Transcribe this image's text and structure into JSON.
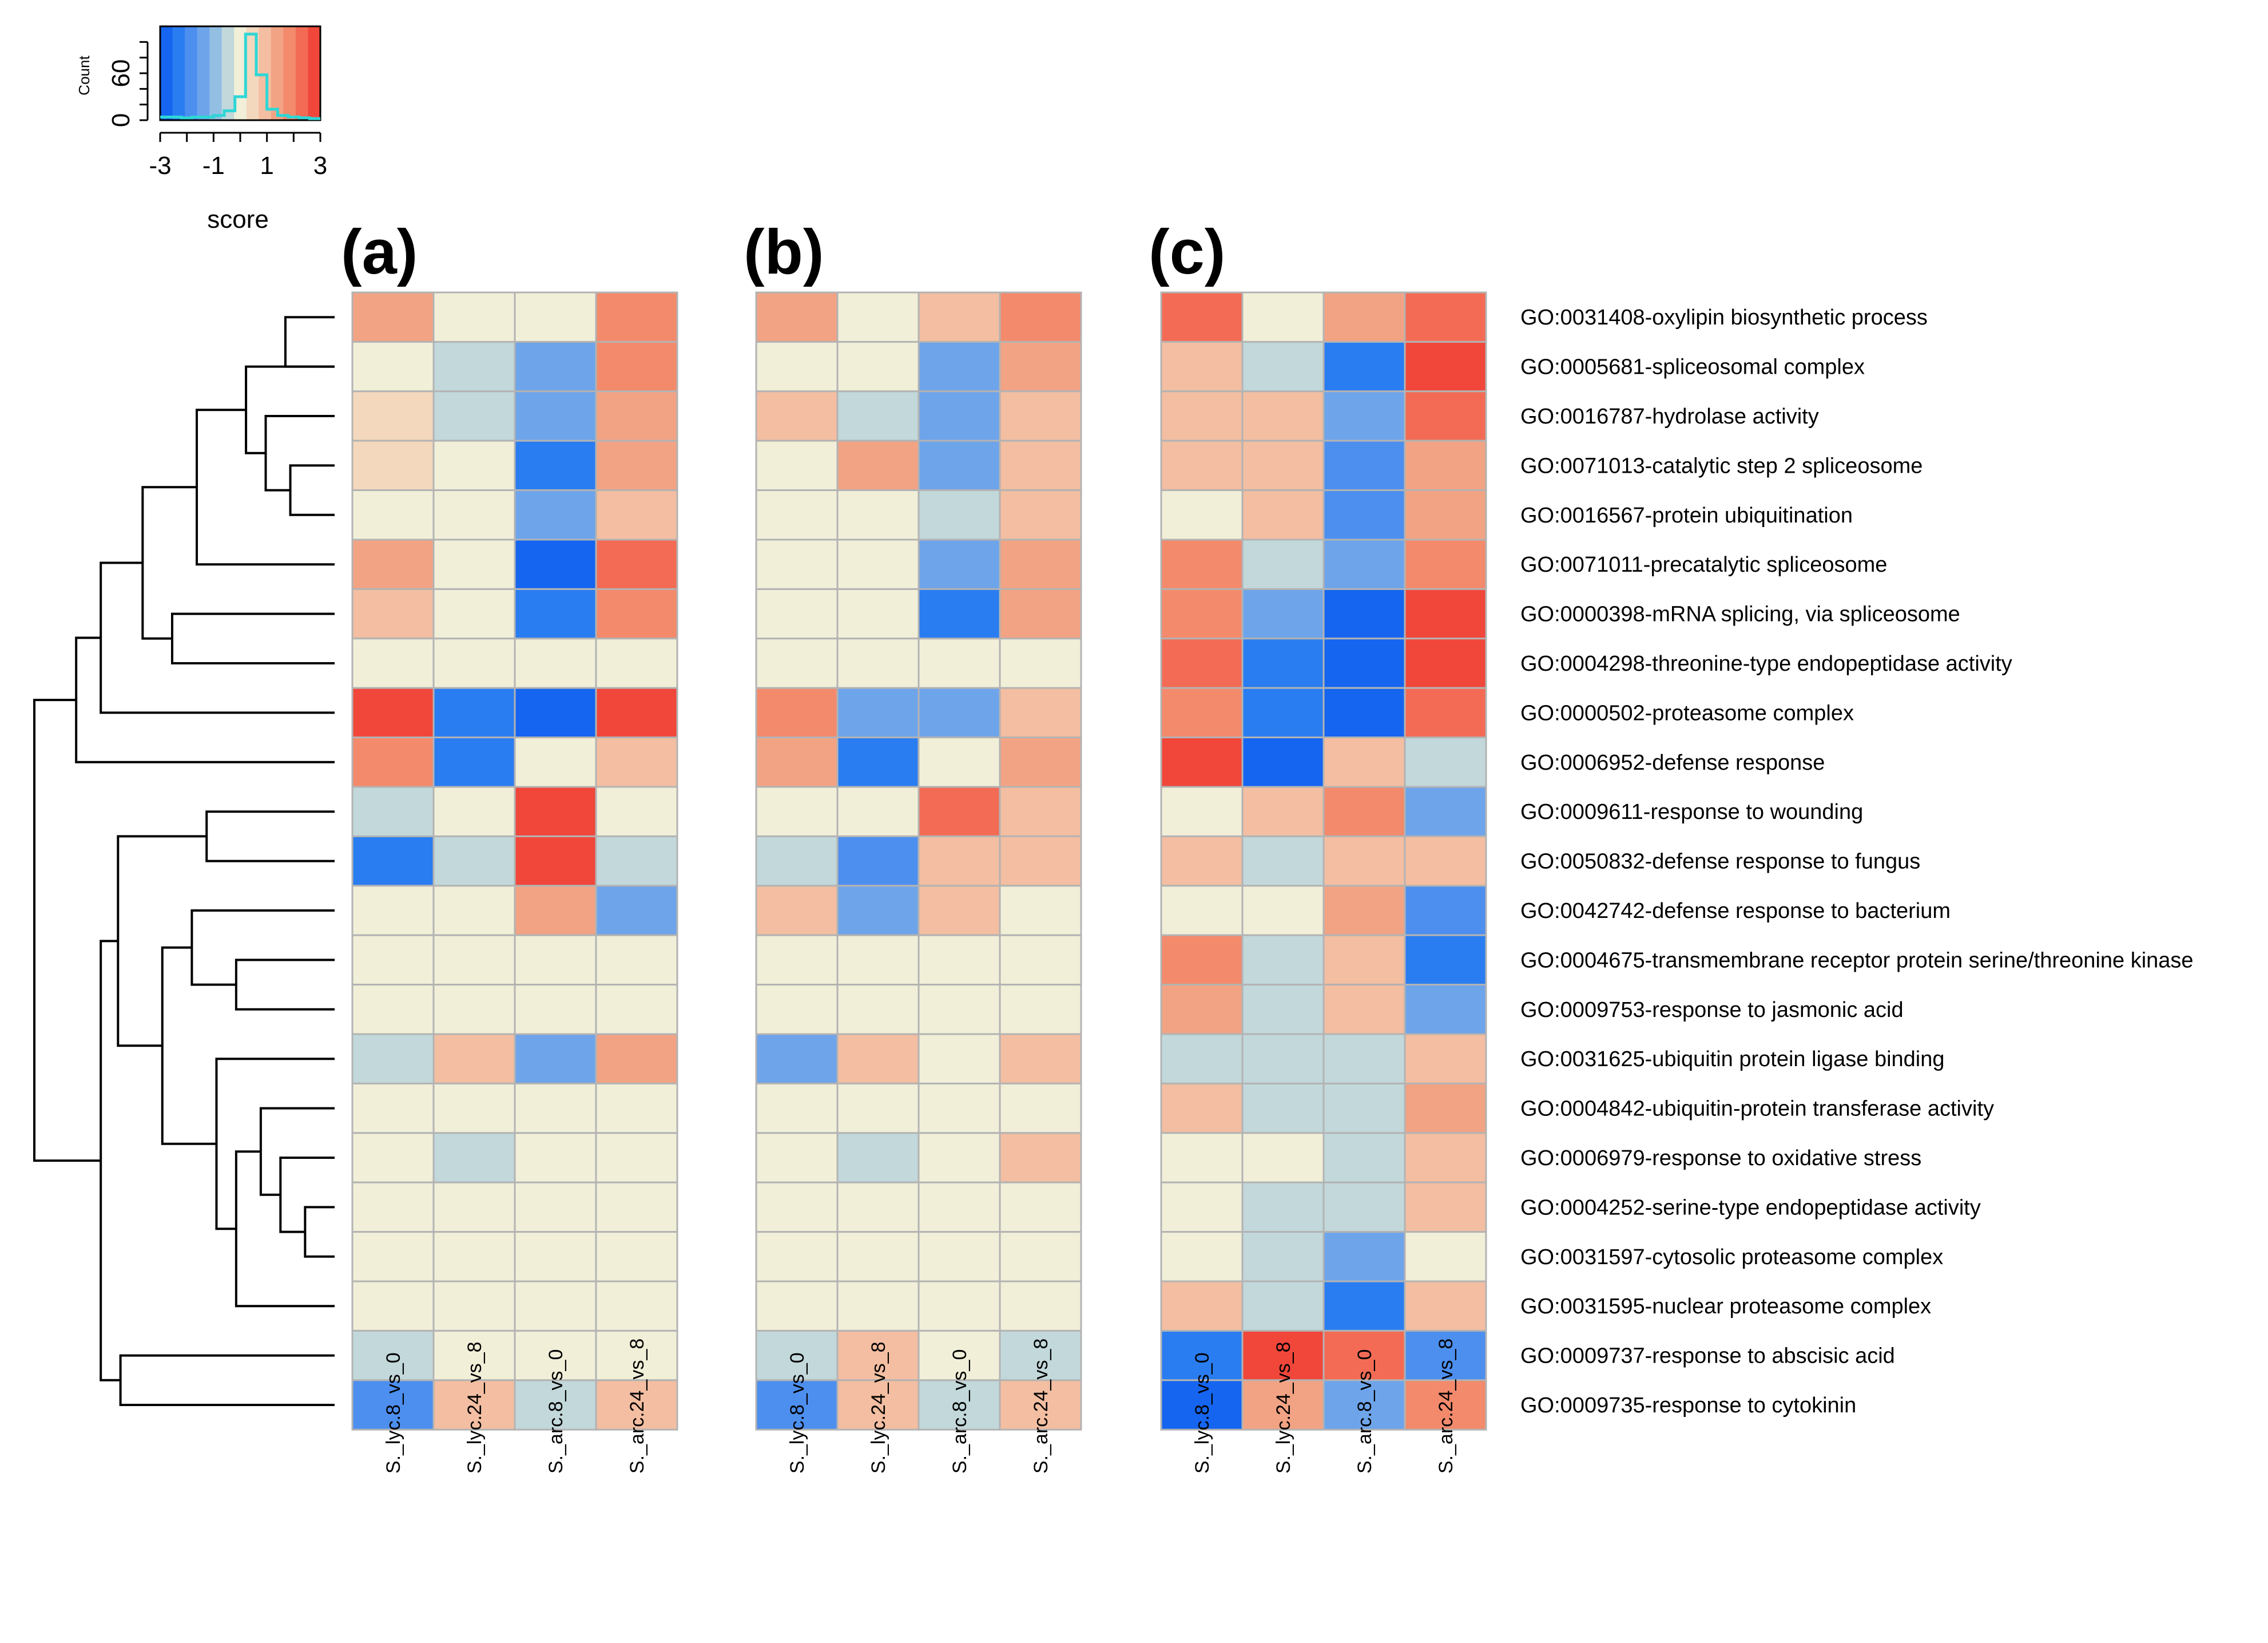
{
  "chart_data": {
    "type": "heatmap",
    "color_key": {
      "xlabel": "score",
      "ylabel": "Count",
      "range": [
        -3,
        3
      ],
      "x_ticks": [
        "-3",
        "-1",
        "1",
        "3"
      ],
      "x_tick_values": [
        -3,
        -1,
        1,
        3
      ],
      "y_ticks": [
        "0",
        "60"
      ],
      "y_tick_values": [
        0,
        60
      ],
      "colors": [
        "#1565f0",
        "#2a7df1",
        "#4d8fef",
        "#6ea4ea",
        "#93bfe3",
        "#c2d8db",
        "#f1efd8",
        "#f3d8bd",
        "#f3bea1",
        "#f2a384",
        "#f38a6c",
        "#f36b55",
        "#f1473b"
      ],
      "histogram": [
        4,
        4,
        3,
        4,
        4,
        6,
        12,
        30,
        110,
        58,
        14,
        6,
        4,
        3,
        2
      ],
      "histogram_color": "#2fd6d6"
    },
    "panels": [
      {
        "label": "(a)",
        "columns": [
          "S._lyc.8_vs_0",
          "S._lyc.24_vs_8",
          "S._arc.8_vs_0",
          "S._arc.24_vs_8"
        ],
        "values": [
          [
            1.4,
            0.0,
            0.0,
            2.0
          ],
          [
            0.0,
            -0.5,
            -1.2,
            2.0
          ],
          [
            0.6,
            -0.5,
            -1.2,
            1.5
          ],
          [
            0.6,
            0.0,
            -2.2,
            1.5
          ],
          [
            0.0,
            0.0,
            -1.2,
            0.8
          ],
          [
            1.5,
            0.0,
            -3.0,
            2.5
          ],
          [
            0.8,
            0.0,
            -2.5,
            2.0
          ],
          [
            0.0,
            0.0,
            0.0,
            0.0
          ],
          [
            3.0,
            -2.3,
            -3.0,
            2.8
          ],
          [
            1.8,
            -2.3,
            0.0,
            0.8
          ],
          [
            -0.5,
            0.0,
            2.9,
            0.0
          ],
          [
            -2.5,
            -0.5,
            3.0,
            -0.5
          ],
          [
            0.0,
            0.0,
            1.5,
            -1.2
          ],
          [
            0.0,
            0.0,
            0.0,
            0.0
          ],
          [
            0.0,
            0.0,
            0.0,
            0.0
          ],
          [
            -0.5,
            0.8,
            -1.2,
            1.5
          ],
          [
            0.0,
            0.0,
            0.0,
            0.0
          ],
          [
            0.0,
            -0.5,
            0.0,
            0.0
          ],
          [
            0.0,
            0.0,
            0.0,
            0.0
          ],
          [
            0.0,
            0.0,
            0.0,
            0.0
          ],
          [
            0.0,
            0.0,
            0.0,
            0.0
          ],
          [
            -0.5,
            0.0,
            0.0,
            0.0
          ],
          [
            -1.8,
            0.8,
            -0.5,
            0.8
          ]
        ]
      },
      {
        "label": "(b)",
        "columns": [
          "S._lyc.8_vs_0",
          "S._lyc.24_vs_8",
          "S._arc.8_vs_0",
          "S._arc.24_vs_8"
        ],
        "values": [
          [
            1.3,
            0.0,
            0.7,
            2.0
          ],
          [
            0.0,
            0.0,
            -1.2,
            1.4
          ],
          [
            0.7,
            -0.5,
            -1.2,
            0.8
          ],
          [
            0.0,
            1.4,
            -1.2,
            0.8
          ],
          [
            0.0,
            0.0,
            -0.5,
            0.8
          ],
          [
            0.0,
            0.0,
            -1.2,
            1.4
          ],
          [
            0.0,
            0.0,
            -2.2,
            1.4
          ],
          [
            0.0,
            0.0,
            0.0,
            0.0
          ],
          [
            2.0,
            -1.2,
            -1.2,
            0.8
          ],
          [
            1.3,
            -2.2,
            0.0,
            1.4
          ],
          [
            0.0,
            0.0,
            2.4,
            0.8
          ],
          [
            -0.5,
            -1.8,
            0.8,
            0.8
          ],
          [
            0.8,
            -1.2,
            0.8,
            0.0
          ],
          [
            0.0,
            0.0,
            0.0,
            0.0
          ],
          [
            0.0,
            0.0,
            0.0,
            0.0
          ],
          [
            -1.2,
            0.8,
            0.0,
            0.8
          ],
          [
            0.0,
            0.0,
            0.0,
            0.0
          ],
          [
            0.0,
            -0.5,
            0.0,
            0.8
          ],
          [
            0.0,
            0.0,
            0.0,
            0.0
          ],
          [
            0.0,
            0.0,
            0.0,
            0.0
          ],
          [
            0.0,
            0.0,
            0.0,
            0.0
          ],
          [
            -0.5,
            0.8,
            0.0,
            -0.5
          ],
          [
            -1.8,
            0.8,
            -0.5,
            0.8
          ]
        ]
      },
      {
        "label": "(c)",
        "columns": [
          "S._lyc.8_vs_0",
          "S._lyc.24_vs_8",
          "S._arc.8_vs_0",
          "S._arc.24_vs_8"
        ],
        "values": [
          [
            2.4,
            0.0,
            1.3,
            2.4
          ],
          [
            0.8,
            -0.5,
            -2.2,
            2.8
          ],
          [
            0.8,
            0.8,
            -1.2,
            2.5
          ],
          [
            0.8,
            0.8,
            -1.8,
            1.3
          ],
          [
            0.0,
            0.8,
            -1.8,
            1.4
          ],
          [
            2.0,
            -0.5,
            -1.2,
            2.0
          ],
          [
            2.0,
            -1.2,
            -3.0,
            3.0
          ],
          [
            2.4,
            -2.5,
            -3.0,
            3.0
          ],
          [
            2.0,
            -2.2,
            -3.0,
            2.4
          ],
          [
            3.0,
            -3.0,
            0.8,
            -0.5
          ],
          [
            0.0,
            0.8,
            2.0,
            -1.2
          ],
          [
            0.8,
            -0.5,
            0.8,
            0.8
          ],
          [
            0.0,
            0.0,
            1.5,
            -1.8
          ],
          [
            2.0,
            -0.5,
            0.8,
            -2.3
          ],
          [
            1.5,
            -0.5,
            0.8,
            -1.2
          ],
          [
            -0.5,
            -0.5,
            -0.5,
            0.8
          ],
          [
            0.8,
            -0.5,
            -0.5,
            1.4
          ],
          [
            0.0,
            0.0,
            -0.5,
            0.8
          ],
          [
            0.0,
            -0.5,
            -0.5,
            0.8
          ],
          [
            0.0,
            -0.5,
            -1.2,
            0.0
          ],
          [
            0.8,
            -0.5,
            -2.3,
            0.8
          ],
          [
            -2.2,
            2.8,
            2.4,
            -1.8
          ],
          [
            -2.9,
            1.3,
            -1.2,
            2.0
          ]
        ]
      }
    ],
    "rows": [
      "GO:0031408-oxylipin biosynthetic process",
      "GO:0005681-spliceosomal complex",
      "GO:0016787-hydrolase activity",
      "GO:0071013-catalytic step 2 spliceosome",
      "GO:0016567-protein ubiquitination",
      "GO:0071011-precatalytic spliceosome",
      "GO:0000398-mRNA splicing, via spliceosome",
      "GO:0004298-threonine-type endopeptidase activity",
      "GO:0000502-proteasome complex",
      "GO:0006952-defense response",
      "GO:0009611-response to wounding",
      "GO:0050832-defense response to fungus",
      "GO:0042742-defense response to bacterium",
      "GO:0004675-transmembrane receptor protein serine/threonine kinase",
      "GO:0009753-response to jasmonic acid",
      "GO:0031625-ubiquitin protein ligase binding",
      "GO:0004842-ubiquitin-protein transferase activity",
      "GO:0006979-response to oxidative stress",
      "GO:0004252-serine-type endopeptidase activity",
      "GO:0031597-cytosolic proteasome complex",
      "GO:0031595-nuclear proteasome complex",
      "GO:0009737-response to abscisic acid",
      "GO:0009735-response to cytokinin"
    ],
    "dendrogram": {
      "merges": [
        [
          0,
          1,
          0.2
        ],
        [
          18,
          19,
          0.12
        ],
        [
          3,
          4,
          0.18
        ],
        [
          17,
          -2,
          0.22
        ],
        [
          2,
          -3,
          0.28
        ],
        [
          16,
          -4,
          0.3
        ],
        [
          1,
          -5,
          0.36
        ],
        [
          20,
          -6,
          0.4
        ],
        [
          10,
          11,
          0.52
        ],
        [
          13,
          14,
          0.4
        ],
        [
          5,
          -7,
          0.56
        ],
        [
          15,
          -8,
          0.48
        ],
        [
          6,
          7,
          0.66
        ],
        [
          12,
          -10,
          0.58
        ],
        [
          -11,
          -13,
          0.78
        ],
        [
          8,
          -15,
          0.95
        ],
        [
          -14,
          -12,
          0.7
        ],
        [
          21,
          22,
          0.87
        ],
        [
          -9,
          -17,
          0.88
        ],
        [
          -16,
          9,
          1.05
        ],
        [
          -19,
          -18,
          0.95
        ],
        [
          -20,
          -21,
          1.22
        ]
      ],
      "max_height": 1.22
    }
  }
}
